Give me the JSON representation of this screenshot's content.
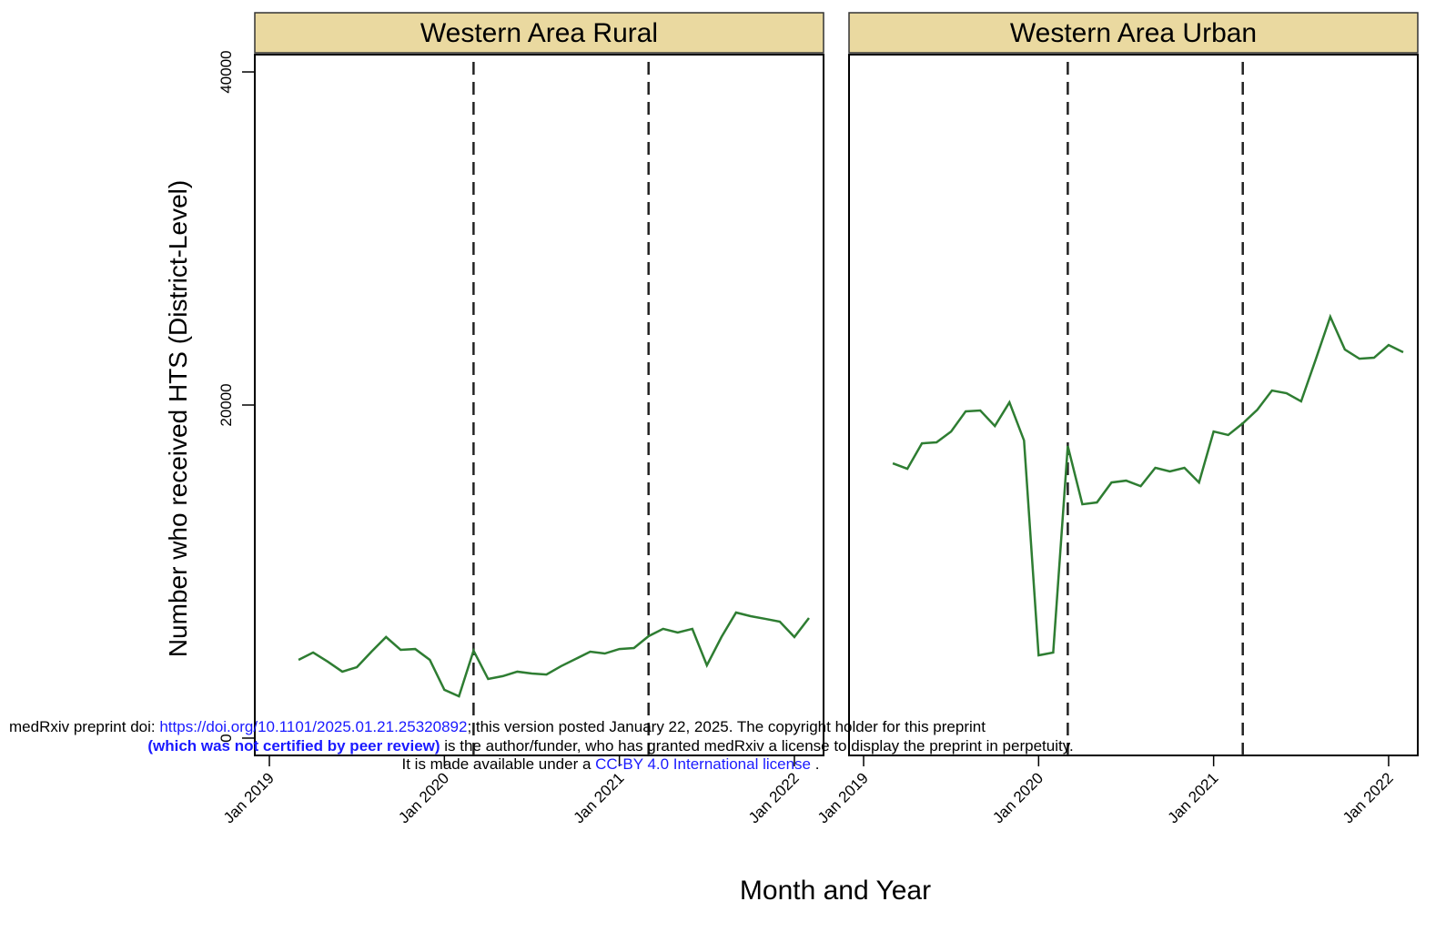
{
  "chart_data": {
    "type": "line",
    "ylabel": "Number who received HTS (District-Level)",
    "xlabel": "Month and Year",
    "color": "#2e7d32",
    "ylim": [
      -1040,
      41040
    ],
    "yticks": [
      0,
      20000,
      40000
    ],
    "xlim": [
      "2018-12",
      "2022-03"
    ],
    "xticks": [
      {
        "value": "2019-01",
        "label": "Jan 2019"
      },
      {
        "value": "2020-01",
        "label": "Jan 2020"
      },
      {
        "value": "2021-01",
        "label": "Jan 2021"
      },
      {
        "value": "2022-01",
        "label": "Jan 2022"
      }
    ],
    "vlines": [
      "2020-03",
      "2021-03"
    ],
    "x": [
      "2019-03",
      "2019-04",
      "2019-05",
      "2019-06",
      "2019-07",
      "2019-08",
      "2019-09",
      "2019-10",
      "2019-11",
      "2019-12",
      "2020-01",
      "2020-02",
      "2020-03",
      "2020-04",
      "2020-05",
      "2020-06",
      "2020-07",
      "2020-08",
      "2020-09",
      "2020-10",
      "2020-11",
      "2020-12",
      "2021-01",
      "2021-02",
      "2021-03",
      "2021-04",
      "2021-05",
      "2021-06",
      "2021-07",
      "2021-08",
      "2021-09",
      "2021-10",
      "2021-11",
      "2021-12",
      "2022-01",
      "2022-02"
    ],
    "facets": [
      {
        "title": "Western Area Rural",
        "values": [
          4700,
          5140,
          4590,
          3990,
          4260,
          5190,
          6070,
          5300,
          5350,
          4700,
          2900,
          2510,
          5250,
          3550,
          3720,
          3990,
          3880,
          3820,
          4320,
          4750,
          5190,
          5080,
          5350,
          5410,
          6120,
          6560,
          6340,
          6560,
          4370,
          6070,
          7540,
          7320,
          7160,
          6990,
          6070,
          7210
        ]
      },
      {
        "title": "Western Area Urban",
        "values": [
          16500,
          16170,
          17700,
          17760,
          18410,
          19620,
          19670,
          18740,
          20160,
          17870,
          4970,
          5140,
          17540,
          14040,
          14150,
          15350,
          15460,
          15130,
          16230,
          16010,
          16230,
          15350,
          18410,
          18200,
          18900,
          19720,
          20870,
          20710,
          20220,
          22730,
          25300,
          23330,
          22780,
          22840,
          23600,
          23170
        ]
      }
    ]
  },
  "overlay": {
    "line1": {
      "prefix": "medRxiv preprint doi: ",
      "link": "https://doi.org/10.1101/2025.01.21.25320892",
      "suffix": "; this version posted January 22, 2025. The copyright holder for this preprint"
    },
    "line2": {
      "bold": "(which was not certified by peer review)",
      "suffix": " is the author/funder, who has granted medRxiv a license to display the preprint in perpetuity."
    },
    "line3": {
      "prefix": "It is made available under a ",
      "link": "CC-BY 4.0 International license",
      "suffix": " ."
    }
  }
}
